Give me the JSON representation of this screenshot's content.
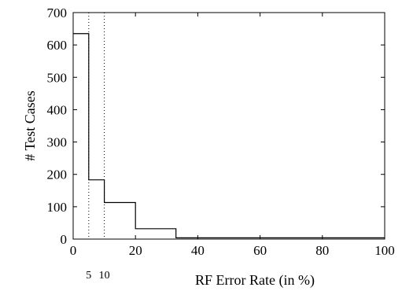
{
  "chart_data": {
    "type": "line",
    "style": "step",
    "xlabel": "RF Error Rate (in %)",
    "ylabel": "# Test Cases",
    "xlim": [
      0,
      100
    ],
    "ylim": [
      0,
      700
    ],
    "xticks": [
      0,
      20,
      40,
      60,
      80,
      100
    ],
    "yticks": [
      0,
      100,
      200,
      300,
      400,
      500,
      600,
      700
    ],
    "grid": false,
    "series": [
      {
        "steps": [
          {
            "x0": 0,
            "x1": 5,
            "y": 635
          },
          {
            "x0": 5,
            "x1": 10,
            "y": 183
          },
          {
            "x0": 10,
            "x1": 20,
            "y": 113
          },
          {
            "x0": 20,
            "x1": 33,
            "y": 32
          },
          {
            "x0": 33,
            "x1": 100,
            "y": 4
          }
        ]
      }
    ],
    "reference_lines": [
      {
        "x": 5,
        "label": "5",
        "style": "dotted"
      },
      {
        "x": 10,
        "label": "10",
        "style": "dotted"
      }
    ]
  }
}
